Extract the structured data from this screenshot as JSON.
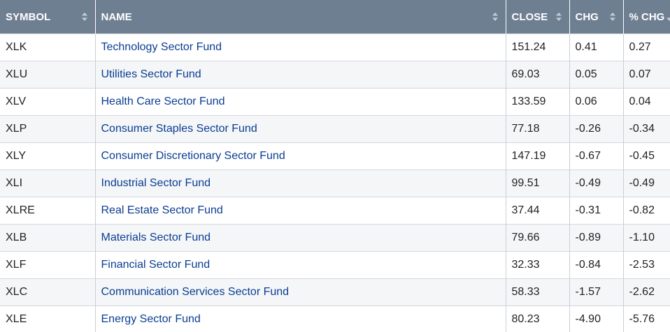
{
  "headers": {
    "symbol": "SYMBOL",
    "name": "NAME",
    "close": "CLOSE",
    "chg": "CHG",
    "pct_chg": "% CHG"
  },
  "rows": [
    {
      "symbol": "XLK",
      "name": "Technology Sector Fund",
      "close": "151.24",
      "chg": "0.41",
      "pct_chg": "0.27"
    },
    {
      "symbol": "XLU",
      "name": "Utilities Sector Fund",
      "close": "69.03",
      "chg": "0.05",
      "pct_chg": "0.07"
    },
    {
      "symbol": "XLV",
      "name": "Health Care Sector Fund",
      "close": "133.59",
      "chg": "0.06",
      "pct_chg": "0.04"
    },
    {
      "symbol": "XLP",
      "name": "Consumer Staples Sector Fund",
      "close": "77.18",
      "chg": "-0.26",
      "pct_chg": "-0.34"
    },
    {
      "symbol": "XLY",
      "name": "Consumer Discretionary Sector Fund",
      "close": "147.19",
      "chg": "-0.67",
      "pct_chg": "-0.45"
    },
    {
      "symbol": "XLI",
      "name": "Industrial Sector Fund",
      "close": "99.51",
      "chg": "-0.49",
      "pct_chg": "-0.49"
    },
    {
      "symbol": "XLRE",
      "name": "Real Estate Sector Fund",
      "close": "37.44",
      "chg": "-0.31",
      "pct_chg": "-0.82"
    },
    {
      "symbol": "XLB",
      "name": "Materials Sector Fund",
      "close": "79.66",
      "chg": "-0.89",
      "pct_chg": "-1.10"
    },
    {
      "symbol": "XLF",
      "name": "Financial Sector Fund",
      "close": "32.33",
      "chg": "-0.84",
      "pct_chg": "-2.53"
    },
    {
      "symbol": "XLC",
      "name": "Communication Services Sector Fund",
      "close": "58.33",
      "chg": "-1.57",
      "pct_chg": "-2.62"
    },
    {
      "symbol": "XLE",
      "name": "Energy Sector Fund",
      "close": "80.23",
      "chg": "-4.90",
      "pct_chg": "-5.76"
    }
  ],
  "colors": {
    "header_bg": "#6f7f92",
    "link": "#0b3d91",
    "row_alt": "#f4f6f8"
  },
  "icons": {
    "sort": "sort-up-down-icon"
  }
}
